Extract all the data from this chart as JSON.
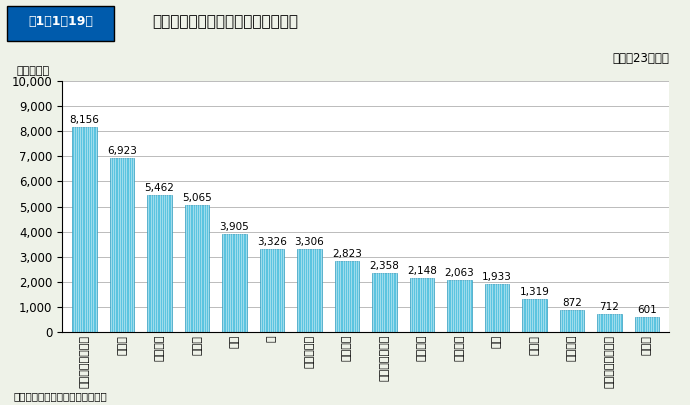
{
  "title": "第1－1－19図　主な出火原因別の火災による損害額",
  "subtitle": "（平成23年中）",
  "ylabel": "（百万円）",
  "note": "（備考）「火災報告」により作成",
  "categories": [
    "電灯電話等の配線",
    "たばこ",
    "ストーブ",
    "こんろ",
    "放火",
    "炉",
    "放火の疑い",
    "配線器具",
    "溶接機・切断機",
    "電気装置",
    "電気機器",
    "灯火",
    "たき火",
    "火あそび",
    "マッチ・ライター",
    "排気管"
  ],
  "values": [
    8156,
    6923,
    5462,
    5065,
    3905,
    3326,
    3306,
    2823,
    2358,
    2148,
    2063,
    1933,
    1319,
    872,
    712,
    601
  ],
  "bar_color": "#5bc4e0",
  "bar_edge_color": "#3aa0c0",
  "ylim": [
    0,
    10000
  ],
  "yticks": [
    0,
    1000,
    2000,
    3000,
    4000,
    5000,
    6000,
    7000,
    8000,
    9000,
    10000
  ],
  "bg_color": "#eef2e8",
  "plot_bg_color": "#ffffff",
  "header_box_color": "#005bac",
  "header_text_color": "#ffffff",
  "title_fontsize": 13,
  "label_fontsize": 8,
  "value_fontsize": 7.5,
  "tick_fontsize": 8.5,
  "ylabel_fontsize": 8
}
